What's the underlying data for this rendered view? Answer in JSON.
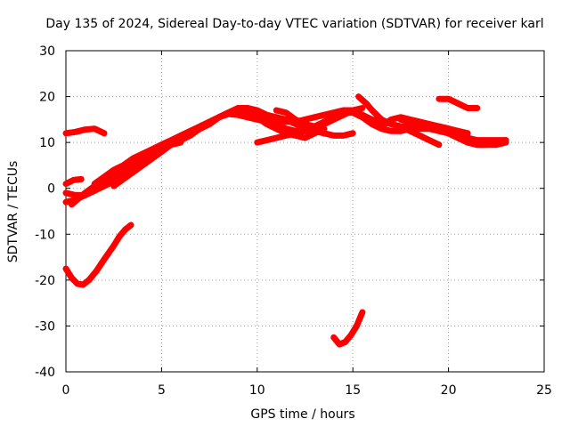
{
  "chart_data": {
    "type": "line",
    "title": "Day 135 of 2024, Sidereal Day-to-day VTEC variation (SDTVAR) for receiver karl",
    "xlabel": "GPS time / hours",
    "ylabel": "SDTVAR / TECUs",
    "xlim": [
      0,
      25
    ],
    "ylim": [
      -40,
      30
    ],
    "xticks": [
      0,
      5,
      10,
      15,
      20,
      25
    ],
    "yticks": [
      -40,
      -30,
      -20,
      -10,
      0,
      10,
      20,
      30
    ],
    "grid": true,
    "series_color": "#ff0000",
    "series": [
      {
        "name": "arc1",
        "x": [
          0.0,
          0.5,
          1.0,
          1.5,
          2.0
        ],
        "y": [
          12,
          12.3,
          12.8,
          13,
          12
        ]
      },
      {
        "name": "arc2",
        "x": [
          0.0,
          0.3,
          0.6,
          0.9,
          1.2,
          1.6,
          2.0,
          2.5,
          2.8,
          3.1,
          3.4
        ],
        "y": [
          -17.5,
          -19.5,
          -20.8,
          -21,
          -20,
          -18,
          -15.5,
          -12.5,
          -10.5,
          -9,
          -8
        ]
      },
      {
        "name": "arc3",
        "x": [
          0.0,
          0.4,
          0.8
        ],
        "y": [
          1,
          1.8,
          2
        ]
      },
      {
        "name": "arc4",
        "x": [
          0.0,
          0.5,
          1.0,
          1.5,
          2.0,
          2.5,
          3.0,
          3.5,
          4.0,
          4.5,
          5.0,
          5.5,
          6.0
        ],
        "y": [
          -1,
          -1.5,
          -1.5,
          -0.5,
          1,
          2,
          3.5,
          5,
          6.5,
          7.5,
          8.5,
          9.5,
          10
        ]
      },
      {
        "name": "arc5",
        "x": [
          0.0,
          0.5,
          1.0,
          1.5,
          2.0,
          2.5,
          3.0,
          3.5,
          4.0,
          4.5,
          5.0
        ],
        "y": [
          -3,
          -2.5,
          -1.5,
          -0.5,
          0.5,
          1.5,
          2.5,
          3.5,
          5,
          6.5,
          8
        ]
      },
      {
        "name": "arc6",
        "x": [
          0.3,
          1.0,
          1.5,
          2.0,
          2.5,
          3.0,
          3.5,
          4.0,
          4.5
        ],
        "y": [
          -3.5,
          -1,
          0.5,
          2,
          3.5,
          4,
          5.5,
          7,
          8
        ]
      },
      {
        "name": "arc7",
        "x": [
          1.5,
          2.0,
          2.5,
          3.0,
          3.5,
          4.0,
          4.5,
          5.0,
          5.5,
          6.0,
          6.5,
          7.0,
          7.5,
          8.0,
          8.5,
          9.0,
          9.5,
          10.0,
          10.5,
          11.0
        ],
        "y": [
          1,
          2.5,
          4,
          5,
          6.5,
          7.5,
          8.5,
          9.5,
          10.5,
          11.5,
          12.5,
          13.5,
          14.5,
          15.5,
          16.2,
          16,
          15.5,
          15,
          14.5,
          14
        ]
      },
      {
        "name": "arc8",
        "x": [
          2.5,
          3.0,
          3.5,
          4.0,
          4.5,
          5.0,
          5.5,
          6.0,
          6.5,
          7.0,
          7.5,
          8.0,
          8.5,
          9.0,
          9.5,
          10.0,
          10.5,
          11.0,
          11.5,
          12.0,
          12.5,
          13.0,
          13.5
        ],
        "y": [
          0.5,
          2,
          3.5,
          5,
          6.5,
          8,
          9.5,
          11,
          12,
          13,
          14,
          15.5,
          16.5,
          17,
          16.5,
          15.5,
          14,
          13,
          12,
          11.5,
          11,
          12,
          13
        ]
      },
      {
        "name": "arc9",
        "x": [
          5.0,
          5.5,
          6.0,
          6.5,
          7.0,
          7.5,
          8.0,
          8.5,
          9.0,
          9.5,
          10.0,
          10.5,
          11.0,
          11.5,
          12.0,
          12.5,
          13.0,
          13.5,
          14.0,
          14.5,
          15.0,
          15.5,
          16.0,
          16.5,
          17.0,
          17.5,
          18.0,
          18.5,
          19.0,
          19.5
        ],
        "y": [
          8.5,
          10,
          11,
          12,
          13,
          14,
          15.5,
          16.5,
          17.5,
          17.5,
          16.5,
          15.5,
          15,
          14.5,
          14.5,
          15,
          15.5,
          16,
          16.5,
          17,
          17,
          16,
          15,
          14.5,
          14,
          13.5,
          12.5,
          11.5,
          10.5,
          9.5
        ]
      },
      {
        "name": "arc10",
        "x": [
          6.0,
          6.5,
          7.0,
          7.5,
          8.0,
          8.5,
          9.0,
          9.5,
          10.0,
          10.5,
          11.0,
          11.5,
          12.0,
          12.5,
          13.0,
          13.5,
          14.0,
          14.5,
          15.0
        ],
        "y": [
          10.5,
          11.5,
          13,
          14,
          15.5,
          16.5,
          17.5,
          17.5,
          17,
          16,
          15.5,
          15,
          14,
          13,
          12.5,
          12,
          11.5,
          11.5,
          12
        ]
      },
      {
        "name": "arc11",
        "x": [
          10.0,
          10.5,
          11.0,
          11.5,
          12.0,
          12.5,
          13.0
        ],
        "y": [
          10,
          10.5,
          11,
          11.5,
          12,
          12.5,
          13
        ]
      },
      {
        "name": "arc12",
        "x": [
          10.0,
          10.5,
          11.0,
          11.5,
          12.0,
          12.5,
          13.0,
          13.5,
          14.0,
          14.5,
          15.0,
          15.5
        ],
        "y": [
          16,
          15,
          14,
          13,
          12.5,
          12.5,
          13,
          14,
          15,
          16,
          17,
          17.5
        ]
      },
      {
        "name": "arc13",
        "x": [
          11.0,
          11.5,
          12.0,
          12.5,
          13.0,
          13.5,
          14.0,
          14.5,
          15.0,
          15.5,
          16.0,
          16.5,
          17.0,
          17.5,
          18.0,
          18.5,
          19.0,
          19.5,
          20.0,
          20.5,
          21.0
        ],
        "y": [
          17,
          16.5,
          15,
          14,
          13.5,
          14.5,
          15.5,
          16.5,
          16.5,
          15.5,
          14,
          13,
          12.5,
          12.5,
          13,
          13.5,
          13.5,
          13.5,
          13,
          12.5,
          12
        ]
      },
      {
        "name": "arc14",
        "x": [
          15.3,
          15.7,
          16.0,
          16.5,
          17.0,
          17.5,
          18.0,
          18.5,
          19.0,
          19.5,
          20.0,
          20.5,
          21.0,
          21.5,
          22.0,
          22.5,
          23.0
        ],
        "y": [
          20,
          18.5,
          17,
          15,
          14,
          13.5,
          13.5,
          13,
          13,
          12.5,
          12,
          11,
          10,
          9.5,
          9.5,
          9.5,
          10
        ]
      },
      {
        "name": "arc15",
        "x": [
          16.5,
          17.0,
          17.5,
          18.0,
          18.5,
          19.0,
          19.5,
          20.0,
          20.5,
          21.0,
          21.5,
          22.0,
          22.5,
          23.0
        ],
        "y": [
          13.5,
          15,
          15.5,
          15,
          14.5,
          14,
          13.5,
          13,
          12,
          11,
          10.5,
          10.5,
          10.5,
          10.5
        ]
      },
      {
        "name": "arc16",
        "x": [
          17.5,
          18.0,
          18.5,
          19.0,
          19.5,
          20.0,
          20.5,
          21.0,
          21.5,
          22.0,
          22.5,
          23.0
        ],
        "y": [
          15,
          14.5,
          14,
          13.5,
          13,
          12,
          11,
          10,
          9.5,
          9.5,
          10,
          10.5
        ]
      },
      {
        "name": "arc17",
        "x": [
          19.5,
          20.0,
          20.5,
          21.0,
          21.5
        ],
        "y": [
          19.5,
          19.5,
          18.5,
          17.5,
          17.5
        ]
      },
      {
        "name": "arc18",
        "x": [
          14.0,
          14.3,
          14.6,
          14.9,
          15.2,
          15.5
        ],
        "y": [
          -32.5,
          -34,
          -33.5,
          -32,
          -30,
          -27
        ]
      }
    ]
  }
}
